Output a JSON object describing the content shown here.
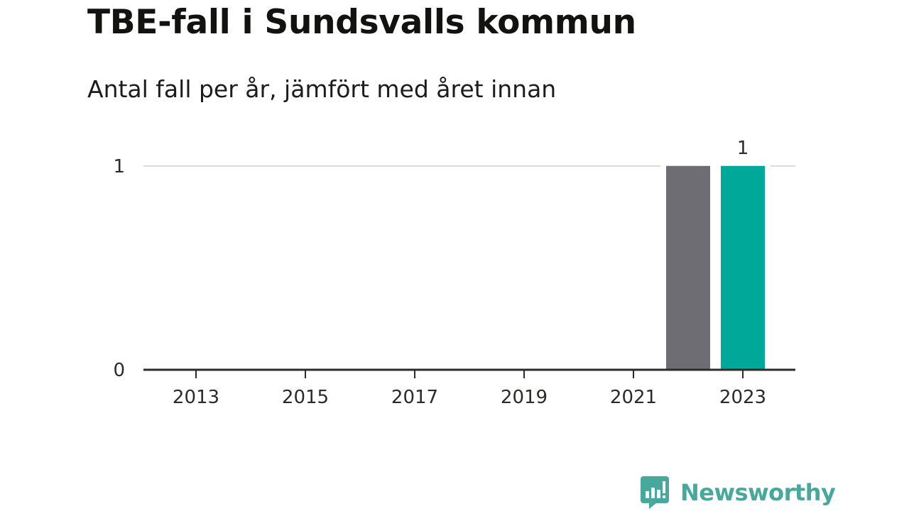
{
  "header": {
    "title": "TBE-fall i Sundsvalls kommun",
    "subtitle": "Antal fall per år, jämfört med året innan"
  },
  "chart_data": {
    "type": "bar",
    "title": "TBE-fall i Sundsvalls kommun",
    "subtitle": "Antal fall per år, jämfört med året innan",
    "xlabel": "",
    "ylabel": "",
    "x_range": [
      2012,
      2024
    ],
    "x_ticks": [
      "2013",
      "2015",
      "2017",
      "2019",
      "2021",
      "2023"
    ],
    "y_range": [
      0,
      1
    ],
    "y_ticks": [
      "0",
      "1"
    ],
    "grid": true,
    "bars": [
      {
        "year": 2022,
        "value": 1,
        "color": "#6e6d73"
      },
      {
        "year": 2023,
        "value": 1,
        "color": "#00a89a",
        "label": "1"
      }
    ]
  },
  "colors": {
    "previous_year": "#6e6d73",
    "current_year": "#00a89a",
    "brand": "#47a89c"
  },
  "branding": {
    "logo_text": "Newsworthy",
    "logo_icon": "bar-chart-speech-bubble-icon"
  }
}
